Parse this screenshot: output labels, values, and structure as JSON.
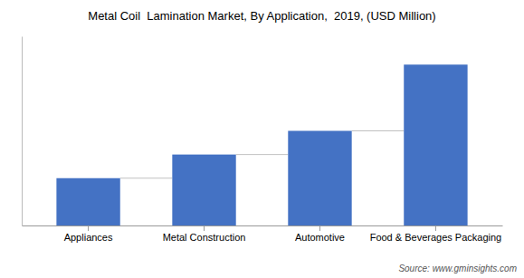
{
  "chart_data": {
    "type": "bar",
    "title": "Metal Coil  Lamination Market, By Application,  2019, (USD Million)",
    "categories": [
      "Appliances",
      "Metal Construction",
      "Automotive",
      "Food & Beverages Packaging"
    ],
    "values": [
      1.0,
      1.5,
      2.0,
      3.4
    ],
    "color": "#4472c4",
    "ylim": [
      0,
      4.0
    ],
    "grid": false,
    "tick_labels": "x",
    "source": "Source: www.gminsights.com"
  }
}
